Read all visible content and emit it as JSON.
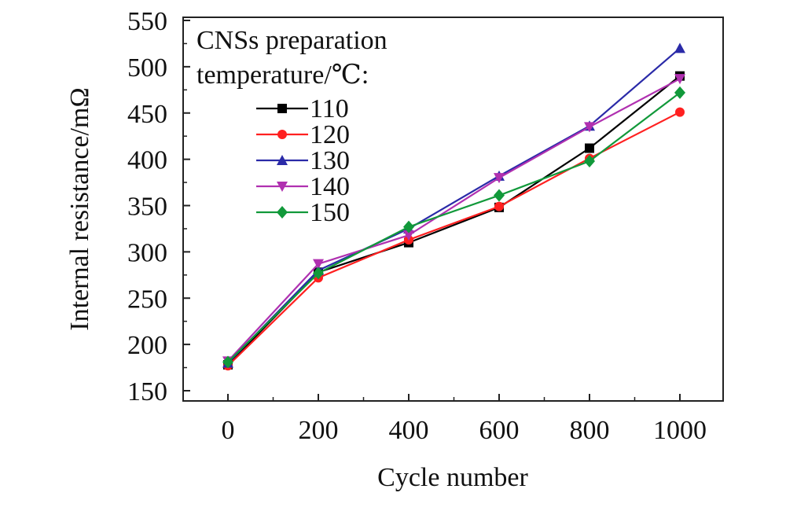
{
  "chart_data": {
    "type": "line",
    "title": "",
    "xlabel": "Cycle number",
    "ylabel": "Internal resistance/mΩ",
    "x": [
      0,
      200,
      400,
      600,
      800,
      1000
    ],
    "x_tick_labels": [
      "0",
      "200",
      "400",
      "600",
      "800",
      "1000"
    ],
    "xlim": [
      -100,
      1100
    ],
    "ylim": [
      150,
      550
    ],
    "y_ticks": [
      150,
      200,
      250,
      300,
      350,
      400,
      450,
      500,
      550
    ],
    "y_tick_labels": [
      "150",
      "200",
      "250",
      "300",
      "350",
      "400",
      "450",
      "500",
      "550"
    ],
    "grid": false,
    "legend": {
      "position": "top-left",
      "title_lines": [
        "CNSs preparation",
        "temperature/℃:"
      ]
    },
    "series": [
      {
        "name": "110",
        "color": "#000000",
        "marker": "square",
        "values": [
          178,
          278,
          310,
          348,
          412,
          490
        ]
      },
      {
        "name": "120",
        "color": "#ff2020",
        "marker": "circle",
        "values": [
          177,
          272,
          313,
          349,
          401,
          451
        ]
      },
      {
        "name": "130",
        "color": "#2a2aa8",
        "marker": "triangle-up",
        "values": [
          180,
          280,
          325,
          382,
          436,
          520
        ]
      },
      {
        "name": "140",
        "color": "#b030b0",
        "marker": "triangle-down",
        "values": [
          182,
          287,
          318,
          380,
          435,
          487
        ]
      },
      {
        "name": "150",
        "color": "#11993a",
        "marker": "diamond",
        "values": [
          181,
          277,
          327,
          361,
          398,
          472
        ]
      }
    ]
  }
}
